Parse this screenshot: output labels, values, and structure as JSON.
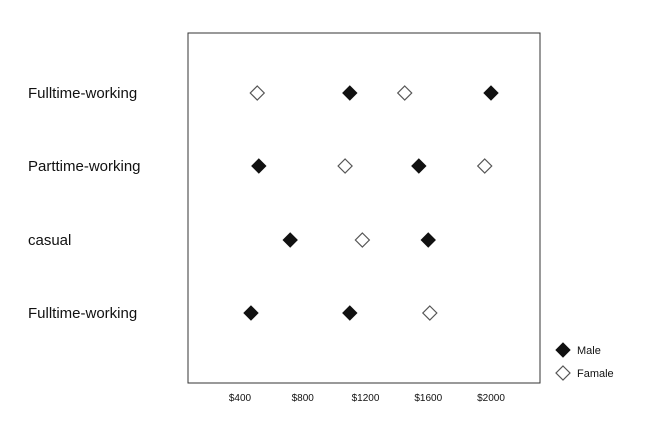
{
  "chart_data": {
    "type": "scatter",
    "title": "",
    "xlabel": "",
    "ylabel": "",
    "categories": [
      "Fulltime-working",
      "Parttime-working",
      "casual",
      "Fulltime-working"
    ],
    "x_ticks": [
      "$400",
      "$800",
      "$1200",
      "$1600",
      "$2000"
    ],
    "x_tick_values": [
      400,
      800,
      1200,
      1600,
      2000
    ],
    "xlim": [
      100,
      2400
    ],
    "grid": false,
    "legend_position": "bottom-right",
    "series": [
      {
        "name": "Male",
        "marker": "filled-diamond",
        "color": "#111111",
        "points": [
          {
            "category": 0,
            "x": 1100
          },
          {
            "category": 0,
            "x": 2000
          },
          {
            "category": 1,
            "x": 520
          },
          {
            "category": 1,
            "x": 1540
          },
          {
            "category": 2,
            "x": 720
          },
          {
            "category": 2,
            "x": 1600
          },
          {
            "category": 3,
            "x": 470
          },
          {
            "category": 3,
            "x": 1100
          }
        ]
      },
      {
        "name": "Famale",
        "marker": "hollow-diamond",
        "color": "#555555",
        "points": [
          {
            "category": 0,
            "x": 510
          },
          {
            "category": 0,
            "x": 1450
          },
          {
            "category": 1,
            "x": 1070
          },
          {
            "category": 1,
            "x": 1960
          },
          {
            "category": 2,
            "x": 1180
          },
          {
            "category": 3,
            "x": 1610
          }
        ]
      }
    ]
  }
}
